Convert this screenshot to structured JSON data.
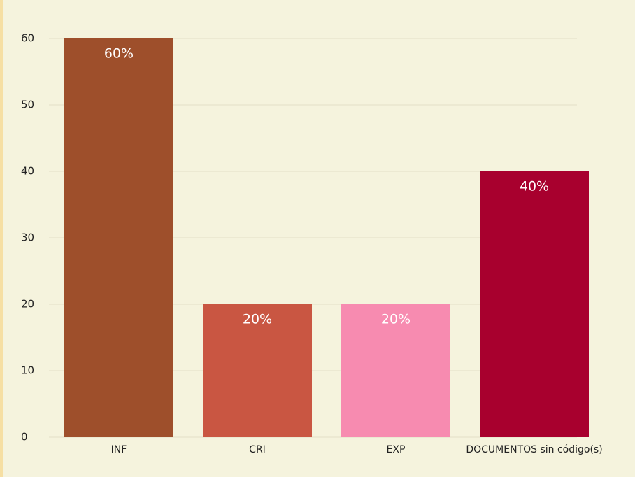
{
  "chart_data": {
    "type": "bar",
    "categories": [
      "INF",
      "CRI",
      "EXP",
      "DOCUMENTOS sin código(s)"
    ],
    "values": [
      60,
      20,
      20,
      40
    ],
    "value_labels": [
      "60%",
      "20%",
      "20%",
      "40%"
    ],
    "colors": [
      "#9e4f2b",
      "#c95642",
      "#f78bb0",
      "#a8002e"
    ],
    "ylim": [
      0,
      60
    ],
    "yticks": [
      0,
      10,
      20,
      30,
      40,
      50,
      60
    ],
    "grid": true
  }
}
